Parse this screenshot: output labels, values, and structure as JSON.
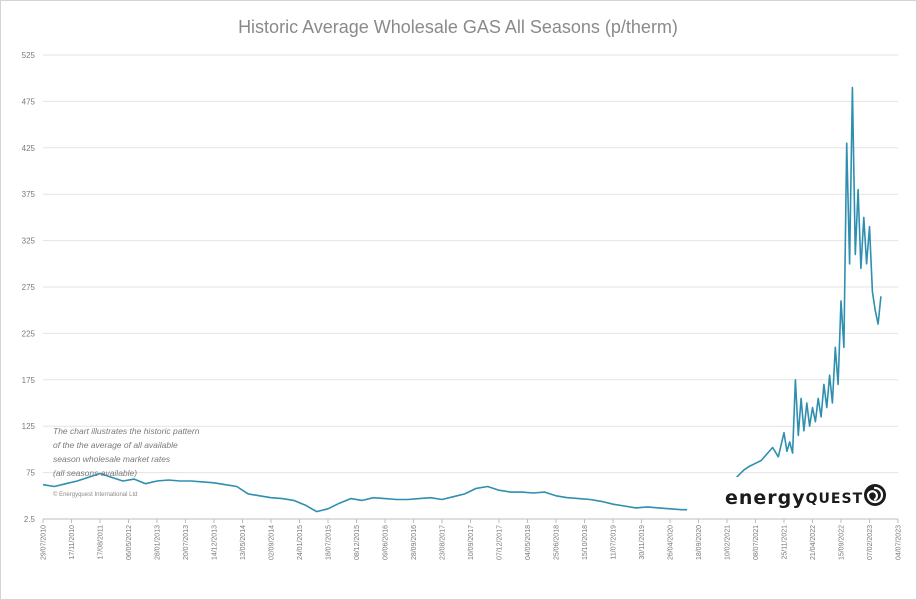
{
  "chart_data": {
    "type": "line",
    "title": "Historic Average Wholesale GAS All Seasons (p/therm)",
    "xlabel": "",
    "ylabel": "",
    "y_ticks": [
      "2.5",
      "75",
      "125",
      "175",
      "225",
      "275",
      "325",
      "375",
      "425",
      "475",
      "525"
    ],
    "ylim": [
      25,
      525
    ],
    "x_ticks": [
      "29/07/2010",
      "17/11/2010",
      "17/08/2011",
      "06/05/2012",
      "28/01/2013",
      "20/07/2013",
      "14/12/2013",
      "13/05/2014",
      "02/09/2014",
      "24/01/2015",
      "18/07/2015",
      "08/12/2015",
      "09/06/2016",
      "28/09/2016",
      "23/08/2017",
      "10/09/2017",
      "07/12/2017",
      "04/05/2018",
      "25/06/2018",
      "15/10/2018",
      "11/07/2019",
      "30/11/2019",
      "26/04/2020",
      "18/09/2020",
      "10/02/2021",
      "08/07/2021",
      "25/11/2021",
      "21/04/2022",
      "15/09/2022",
      "07/02/2023",
      "04/07/2023"
    ],
    "grid": "horizontal",
    "legend": "none",
    "series": [
      {
        "color": "#2e8fb0",
        "x": [
          0,
          0.4,
          0.8,
          1.2,
          1.6,
          2,
          2.4,
          2.8,
          3.2,
          3.6,
          4,
          4.4,
          4.8,
          5.2,
          5.6,
          6,
          6.4,
          6.8,
          7.2,
          7.6,
          8,
          8.4,
          8.8,
          9.2,
          9.6,
          10,
          10.4,
          10.8,
          11.2,
          11.6,
          12,
          12.4,
          12.8,
          13.2,
          13.6,
          14,
          14.4,
          14.8,
          15.2,
          15.6,
          16,
          16.4,
          16.8,
          17.2,
          17.6,
          18,
          18.4,
          18.8,
          19.2,
          19.6,
          20,
          20.4,
          20.8,
          21.2,
          21.6,
          22,
          22.4,
          22.6
        ],
        "y": [
          62,
          60,
          63,
          66,
          70,
          74,
          70,
          66,
          68,
          63,
          66,
          67,
          66,
          66,
          65,
          64,
          62,
          60,
          52,
          50,
          48,
          47,
          45,
          40,
          33,
          36,
          42,
          47,
          45,
          48,
          47,
          46,
          46,
          47,
          48,
          46,
          49,
          52,
          58,
          60,
          56,
          54,
          54,
          53,
          54,
          50,
          48,
          47,
          46,
          44,
          41,
          39,
          37,
          38,
          37,
          36,
          35,
          35
        ]
      },
      {
        "color": "#2e8fb0",
        "x": [
          24.2,
          24.4,
          24.6,
          24.8,
          25,
          25.2,
          25.4,
          25.6,
          25.8,
          26,
          26.1,
          26.2,
          26.3,
          26.4,
          26.5,
          26.6,
          26.7,
          26.8,
          26.9,
          27,
          27.1,
          27.2,
          27.3,
          27.4,
          27.5,
          27.6,
          27.7,
          27.8,
          27.9,
          28,
          28.1,
          28.2,
          28.3,
          28.4,
          28.5,
          28.6,
          28.7,
          28.8,
          28.9,
          29,
          29.1,
          29.2,
          29.3,
          29.4
        ],
        "y": [
          65,
          72,
          78,
          82,
          85,
          88,
          95,
          102,
          92,
          118,
          98,
          108,
          96,
          175,
          115,
          155,
          120,
          150,
          125,
          145,
          130,
          155,
          135,
          170,
          145,
          180,
          150,
          210,
          170,
          260,
          210,
          430,
          300,
          490,
          310,
          380,
          295,
          350,
          300,
          340,
          270,
          250,
          235,
          265
        ]
      }
    ],
    "annotation_lines": [
      "The chart illustrates the historic pattern",
      "of the the average of all available",
      "season wholesale market rates",
      "(all seasons available)"
    ],
    "copyright": "© Energyquest International Ltd",
    "logo": {
      "word1": "energy",
      "word2": "QUEST",
      "icon": "swirl-icon"
    }
  }
}
